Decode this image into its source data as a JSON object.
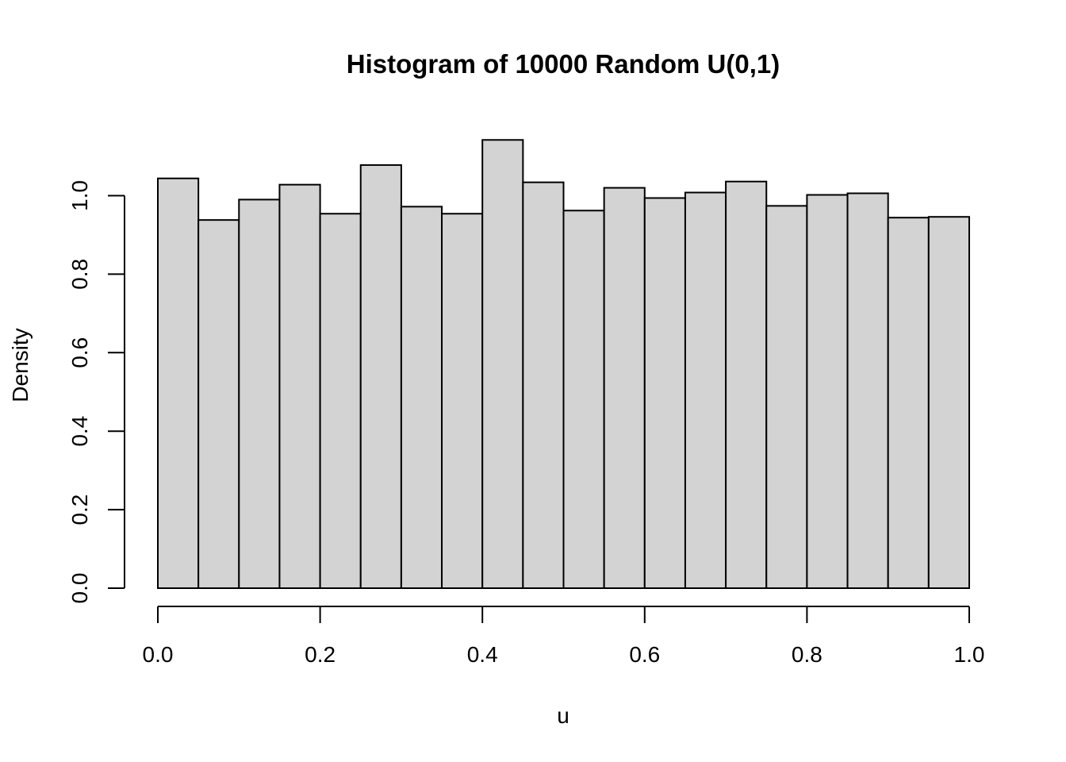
{
  "chart_data": {
    "type": "bar",
    "title": "Histogram of 10000 Random U(0,1)",
    "xlabel": "u",
    "ylabel": "Density",
    "bin_edges": [
      0.0,
      0.05,
      0.1,
      0.15,
      0.2,
      0.25,
      0.3,
      0.35,
      0.4,
      0.45,
      0.5,
      0.55,
      0.6,
      0.65,
      0.7,
      0.75,
      0.8,
      0.85,
      0.9,
      0.95,
      1.0
    ],
    "values": [
      1.044,
      0.938,
      0.99,
      1.028,
      0.954,
      1.078,
      0.972,
      0.954,
      1.142,
      1.034,
      0.962,
      1.02,
      0.994,
      1.008,
      1.036,
      0.974,
      1.002,
      1.006,
      0.944,
      0.946
    ],
    "xlim": [
      0.0,
      1.0
    ],
    "ylim": [
      0.0,
      1.1
    ],
    "x_ticks": [
      0.0,
      0.2,
      0.4,
      0.6,
      0.8,
      1.0
    ],
    "x_tick_labels": [
      "0.0",
      "0.2",
      "0.4",
      "0.6",
      "0.8",
      "1.0"
    ],
    "y_ticks": [
      0.0,
      0.2,
      0.4,
      0.6,
      0.8,
      1.0
    ],
    "y_tick_labels": [
      "0.0",
      "0.2",
      "0.4",
      "0.6",
      "0.8",
      "1.0"
    ],
    "bar_color": "#d3d3d3",
    "edge_color": "#000000",
    "grid": false,
    "legend": "none"
  }
}
